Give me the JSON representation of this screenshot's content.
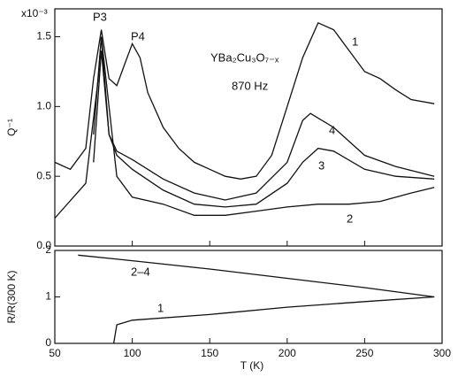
{
  "chart_data": [
    {
      "type": "line",
      "ylabel": "Q⁻¹",
      "scale_label": "x10⁻³",
      "annotations": [
        "P3",
        "P4",
        "YBa₂Cu₃O₇₋ₓ",
        "870 Hz",
        "1",
        "4",
        "3",
        "2"
      ],
      "xlim": [
        50,
        300
      ],
      "ylim": [
        0,
        1.7
      ],
      "yticks": [
        {
          "value": 0,
          "label": "0.0"
        },
        0.5,
        {
          "value": 1,
          "label": "1.0"
        },
        1.5
      ],
      "series": [
        {
          "name": "1",
          "color": "#111111",
          "x": [
            50,
            60,
            70,
            75,
            80,
            85,
            90,
            95,
            100,
            105,
            110,
            120,
            130,
            140,
            150,
            160,
            170,
            180,
            190,
            200,
            210,
            220,
            230,
            240,
            250,
            260,
            270,
            280,
            295
          ],
          "values": [
            0.6,
            0.55,
            0.7,
            1.2,
            1.55,
            1.2,
            1.15,
            1.3,
            1.45,
            1.35,
            1.1,
            0.85,
            0.7,
            0.6,
            0.55,
            0.5,
            0.48,
            0.5,
            0.65,
            1.0,
            1.35,
            1.6,
            1.55,
            1.4,
            1.25,
            1.2,
            1.12,
            1.05,
            1.02
          ]
        },
        {
          "name": "2",
          "color": "#111111",
          "x": [
            50,
            70,
            78,
            80,
            85,
            90,
            100,
            120,
            140,
            160,
            180,
            200,
            220,
            240,
            260,
            280,
            295
          ],
          "values": [
            0.2,
            0.45,
            1.2,
            1.5,
            1.0,
            0.5,
            0.35,
            0.3,
            0.22,
            0.22,
            0.25,
            0.28,
            0.3,
            0.3,
            0.32,
            0.38,
            0.42
          ]
        },
        {
          "name": "3",
          "color": "#111111",
          "x": [
            75,
            80,
            85,
            90,
            100,
            120,
            140,
            160,
            180,
            200,
            210,
            220,
            230,
            250,
            270,
            295
          ],
          "values": [
            0.6,
            1.4,
            0.8,
            0.65,
            0.55,
            0.4,
            0.3,
            0.28,
            0.3,
            0.45,
            0.6,
            0.7,
            0.68,
            0.55,
            0.5,
            0.48
          ]
        },
        {
          "name": "4",
          "color": "#111111",
          "x": [
            75,
            80,
            85,
            90,
            100,
            120,
            140,
            160,
            180,
            200,
            210,
            215,
            230,
            250,
            270,
            295
          ],
          "values": [
            0.8,
            1.5,
            0.8,
            0.68,
            0.62,
            0.48,
            0.38,
            0.33,
            0.38,
            0.6,
            0.9,
            0.95,
            0.85,
            0.65,
            0.57,
            0.5
          ]
        }
      ]
    },
    {
      "type": "line",
      "ylabel": "R/R(300 K)",
      "xlabel": "T  (K)",
      "annotations": [
        "2–4",
        "1"
      ],
      "xlim": [
        50,
        300
      ],
      "xticks": [
        50,
        100,
        150,
        200,
        250,
        300
      ],
      "ylim": [
        0,
        2
      ],
      "yticks": [
        0,
        1,
        2
      ],
      "series": [
        {
          "name": "2–4",
          "color": "#111111",
          "x": [
            65,
            100,
            150,
            200,
            250,
            295
          ],
          "values": [
            1.9,
            1.78,
            1.6,
            1.4,
            1.2,
            1.0
          ]
        },
        {
          "name": "1",
          "color": "#111111",
          "x": [
            88,
            90,
            100,
            150,
            200,
            250,
            295
          ],
          "values": [
            0,
            0.4,
            0.5,
            0.62,
            0.78,
            0.9,
            1.0
          ]
        }
      ]
    }
  ]
}
